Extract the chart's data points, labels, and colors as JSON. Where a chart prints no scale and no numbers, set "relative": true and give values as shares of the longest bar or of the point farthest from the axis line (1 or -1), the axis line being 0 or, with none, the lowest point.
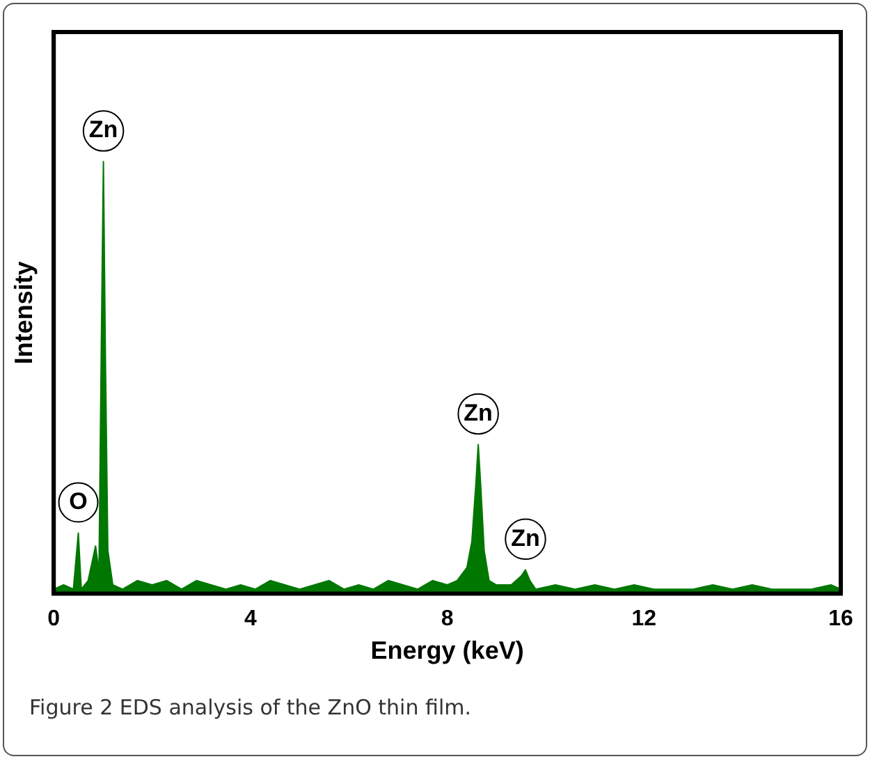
{
  "chart_data": {
    "type": "area",
    "xlabel": "Energy (keV)",
    "ylabel": "Intensity",
    "relative": true,
    "xlim": [
      0,
      16
    ],
    "xticks": [
      0,
      4,
      8,
      12,
      16
    ],
    "grid": false,
    "legend": false,
    "marker": "none",
    "x": [
      0,
      0.2,
      0.4,
      0.5,
      0.56,
      0.7,
      0.85,
      0.92,
      0.97,
      1.01,
      1.05,
      1.1,
      1.2,
      1.4,
      1.7,
      2.0,
      2.3,
      2.6,
      2.9,
      3.2,
      3.5,
      3.8,
      4.1,
      4.4,
      4.7,
      5.0,
      5.3,
      5.6,
      5.9,
      6.2,
      6.5,
      6.8,
      7.1,
      7.4,
      7.7,
      8.0,
      8.2,
      8.4,
      8.5,
      8.58,
      8.63,
      8.68,
      8.75,
      8.85,
      9.0,
      9.3,
      9.5,
      9.59,
      9.68,
      9.8,
      10.2,
      10.6,
      11.0,
      11.4,
      11.8,
      12.2,
      12.6,
      13.0,
      13.4,
      13.8,
      14.2,
      14.6,
      15.0,
      15.4,
      15.8,
      16
    ],
    "series": [
      {
        "color": "#007700",
        "values": [
          0.01,
          0.02,
          0.01,
          0.14,
          0.01,
          0.03,
          0.11,
          0.05,
          0.6,
          1.0,
          0.55,
          0.1,
          0.02,
          0.01,
          0.03,
          0.02,
          0.03,
          0.01,
          0.03,
          0.02,
          0.01,
          0.02,
          0.01,
          0.03,
          0.02,
          0.01,
          0.02,
          0.03,
          0.01,
          0.02,
          0.01,
          0.03,
          0.02,
          0.01,
          0.03,
          0.02,
          0.03,
          0.06,
          0.12,
          0.25,
          0.345,
          0.25,
          0.1,
          0.03,
          0.02,
          0.02,
          0.04,
          0.055,
          0.03,
          0.01,
          0.02,
          0.01,
          0.02,
          0.01,
          0.02,
          0.01,
          0.01,
          0.01,
          0.02,
          0.01,
          0.02,
          0.01,
          0.01,
          0.01,
          0.02,
          0.01
        ]
      }
    ],
    "annotations": [
      {
        "text": "O",
        "x": 0.5,
        "y": 0.14
      },
      {
        "text": "Zn",
        "x": 1.01,
        "y": 1.0
      },
      {
        "text": "Zn",
        "x": 8.63,
        "y": 0.345
      },
      {
        "text": "Zn",
        "x": 9.59,
        "y": 0.055
      },
      "Figure 2 EDS analysis of the ZnO thin film."
    ]
  }
}
